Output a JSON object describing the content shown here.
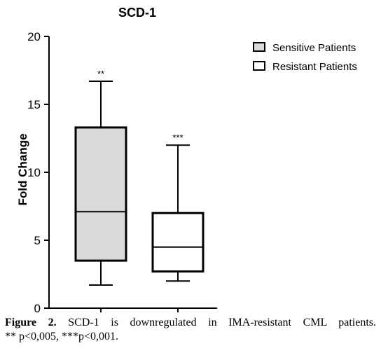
{
  "chart_data": {
    "type": "boxplot",
    "title": "SCD-1",
    "ylabel": "Fold Change",
    "xlabel": "",
    "ylim": [
      0,
      20
    ],
    "yticks": [
      0,
      5,
      10,
      15,
      20
    ],
    "grid": false,
    "legend_position": "top-right",
    "series": [
      {
        "name": "Sensitive Patients",
        "min": 1.7,
        "q1": 3.5,
        "median": 7.1,
        "q3": 13.3,
        "max": 16.7,
        "annotation": "**",
        "fill": "#d9d9d9"
      },
      {
        "name": "Resistant Patients",
        "min": 2.0,
        "q1": 2.7,
        "median": 4.5,
        "q3": 7.0,
        "max": 12.0,
        "annotation": "***",
        "fill": "#ffffff"
      }
    ]
  },
  "caption": {
    "label": "Figure 2.",
    "text_line1": " SCD-1 is downregulated in IMA-resistant CML patients.",
    "text_line2": "** p<0,005, ***p<0,001."
  }
}
